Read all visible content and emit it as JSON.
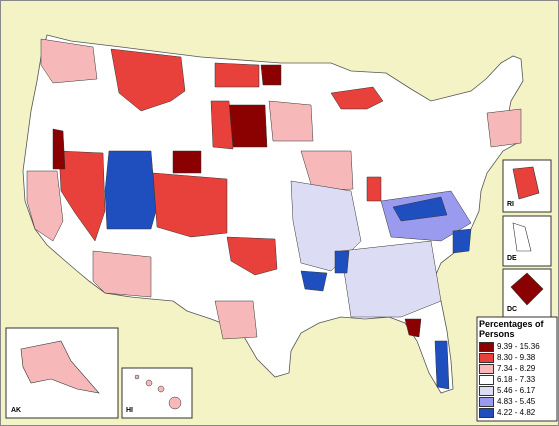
{
  "legend": {
    "title": "Percentages of Persons",
    "classes": [
      {
        "label": "9.39 - 15.36",
        "color": "#8b0000"
      },
      {
        "label": "8.30 - 9.38",
        "color": "#e8403b"
      },
      {
        "label": "7.34 - 8.29",
        "color": "#f6b8b8"
      },
      {
        "label": "6.18 - 7.33",
        "color": "#ffffff"
      },
      {
        "label": "5.46 - 6.17",
        "color": "#dcdcf4"
      },
      {
        "label": "4.83 - 5.45",
        "color": "#9a9aee"
      },
      {
        "label": "4.22 - 4.82",
        "color": "#1f4fbf"
      }
    ]
  },
  "insets": {
    "ak": "AK",
    "hi": "HI",
    "ri": "RI",
    "de": "DE",
    "dc": "DC"
  }
}
